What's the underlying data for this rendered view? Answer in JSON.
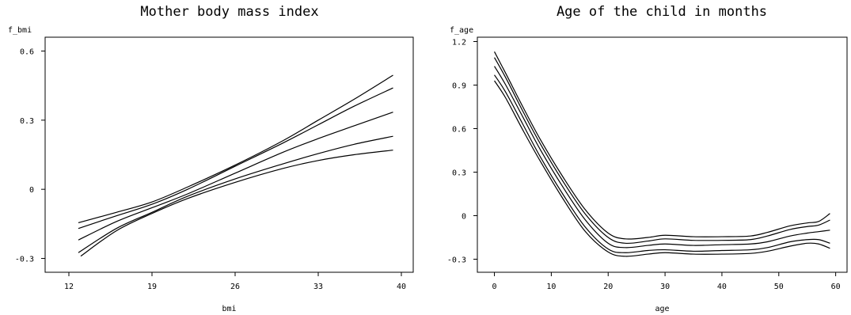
{
  "chart_data": [
    {
      "type": "line",
      "title": "Mother body mass index",
      "ylabel": "f_bmi",
      "xlabel": "bmi",
      "xlim": [
        10,
        41
      ],
      "ylim": [
        -0.36,
        0.66
      ],
      "xticks": [
        12,
        19,
        26,
        33,
        40
      ],
      "xtick_labels": [
        "12",
        "19",
        "26",
        "33",
        "40"
      ],
      "yticks": [
        -0.3,
        0,
        0.3,
        0.6
      ],
      "ytick_labels": [
        "-0.3",
        "0",
        "0.3",
        "0.6"
      ],
      "series": [
        {
          "x": [
            13,
            16,
            19,
            22,
            26,
            30,
            33,
            36,
            39.3
          ],
          "values": [
            -0.29,
            -0.18,
            -0.105,
            -0.04,
            0.03,
            0.09,
            0.125,
            0.15,
            0.17
          ]
        },
        {
          "x": [
            12.8,
            16,
            19,
            22,
            26,
            30,
            33,
            36,
            39.3
          ],
          "values": [
            -0.275,
            -0.17,
            -0.1,
            -0.03,
            0.045,
            0.11,
            0.155,
            0.195,
            0.23
          ]
        },
        {
          "x": [
            12.8,
            16,
            19,
            22,
            26,
            30,
            33,
            36,
            39.3
          ],
          "values": [
            -0.22,
            -0.14,
            -0.08,
            -0.02,
            0.07,
            0.16,
            0.22,
            0.275,
            0.335
          ]
        },
        {
          "x": [
            12.8,
            16,
            19,
            22,
            26,
            30,
            33,
            36,
            39.3
          ],
          "values": [
            -0.17,
            -0.115,
            -0.065,
            0.0,
            0.1,
            0.2,
            0.28,
            0.36,
            0.44
          ]
        },
        {
          "x": [
            12.8,
            16,
            19,
            22,
            26,
            30,
            33,
            36,
            39.3
          ],
          "values": [
            -0.145,
            -0.1,
            -0.055,
            0.01,
            0.105,
            0.21,
            0.3,
            0.39,
            0.495
          ]
        }
      ]
    },
    {
      "type": "line",
      "title": "Age of the child in months",
      "ylabel": "f_age",
      "xlabel": "age",
      "xlim": [
        -3,
        62
      ],
      "ylim": [
        -0.39,
        1.23
      ],
      "xticks": [
        0,
        10,
        20,
        30,
        40,
        50,
        60
      ],
      "xtick_labels": [
        "0",
        "10",
        "20",
        "30",
        "40",
        "50",
        "60"
      ],
      "yticks": [
        -0.3,
        0,
        0.3,
        0.6,
        0.9,
        1.2
      ],
      "ytick_labels": [
        "-0.3",
        "0",
        "0.3",
        "0.6",
        "0.9",
        "1.2"
      ],
      "series": [
        {
          "x": [
            0,
            2,
            5,
            8,
            12,
            16,
            20,
            23,
            27,
            30,
            35,
            40,
            45,
            48,
            52,
            55,
            57,
            59
          ],
          "values": [
            1.13,
            0.98,
            0.75,
            0.53,
            0.27,
            0.04,
            -0.12,
            -0.16,
            -0.15,
            -0.135,
            -0.145,
            -0.145,
            -0.14,
            -0.115,
            -0.07,
            -0.05,
            -0.04,
            0.015
          ]
        },
        {
          "x": [
            0,
            2,
            5,
            8,
            12,
            16,
            20,
            23,
            27,
            30,
            35,
            40,
            45,
            48,
            52,
            55,
            57,
            59
          ],
          "values": [
            1.09,
            0.95,
            0.72,
            0.5,
            0.24,
            0.01,
            -0.15,
            -0.19,
            -0.175,
            -0.16,
            -0.17,
            -0.17,
            -0.165,
            -0.14,
            -0.095,
            -0.075,
            -0.065,
            -0.03
          ]
        },
        {
          "x": [
            0,
            2,
            5,
            8,
            12,
            16,
            20,
            23,
            27,
            30,
            35,
            40,
            45,
            48,
            52,
            55,
            57,
            59
          ],
          "values": [
            1.03,
            0.9,
            0.68,
            0.46,
            0.2,
            -0.03,
            -0.19,
            -0.22,
            -0.205,
            -0.195,
            -0.205,
            -0.2,
            -0.195,
            -0.18,
            -0.14,
            -0.12,
            -0.11,
            -0.1
          ]
        },
        {
          "x": [
            0,
            2,
            5,
            8,
            12,
            16,
            20,
            23,
            27,
            30,
            35,
            40,
            45,
            48,
            52,
            55,
            57,
            59
          ],
          "values": [
            0.97,
            0.85,
            0.63,
            0.41,
            0.15,
            -0.08,
            -0.23,
            -0.255,
            -0.24,
            -0.235,
            -0.245,
            -0.24,
            -0.235,
            -0.22,
            -0.18,
            -0.165,
            -0.165,
            -0.19
          ]
        },
        {
          "x": [
            0,
            2,
            5,
            8,
            12,
            16,
            20,
            23,
            27,
            30,
            35,
            40,
            45,
            48,
            52,
            55,
            57,
            59
          ],
          "values": [
            0.93,
            0.81,
            0.59,
            0.38,
            0.12,
            -0.11,
            -0.25,
            -0.28,
            -0.265,
            -0.255,
            -0.265,
            -0.265,
            -0.26,
            -0.245,
            -0.21,
            -0.19,
            -0.195,
            -0.225
          ]
        }
      ]
    }
  ]
}
